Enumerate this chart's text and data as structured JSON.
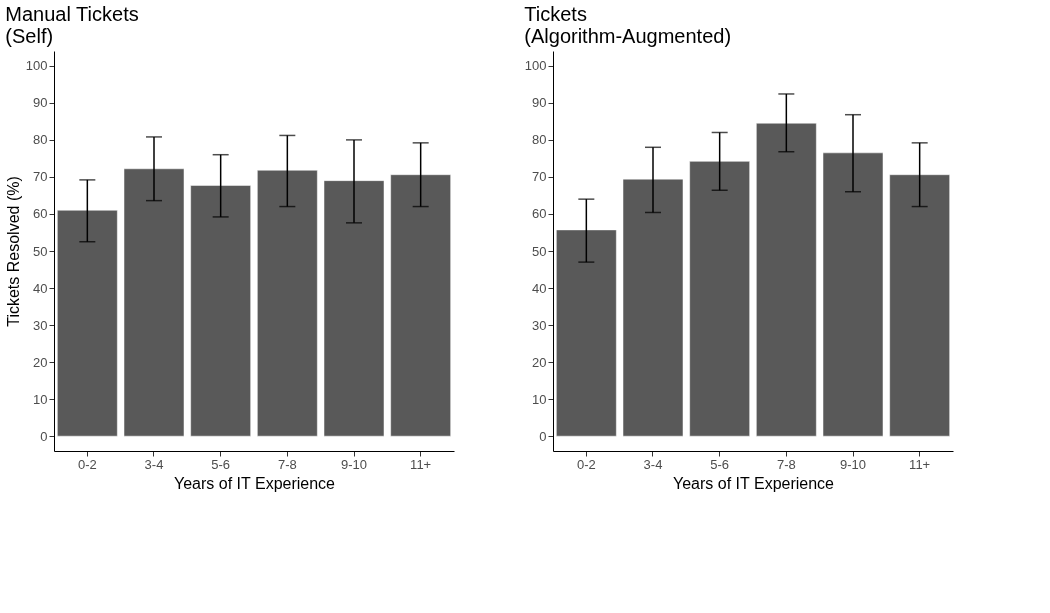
{
  "chart_data": [
    {
      "type": "bar",
      "title": "Manual Tickets\n(Self)",
      "xlabel": "Years of IT Experience",
      "ylabel": "Tickets Resolved (%)",
      "categories": [
        "0-2",
        "3-4",
        "5-6",
        "7-8",
        "9-10",
        "11+"
      ],
      "values": [
        61,
        72.2,
        67.7,
        71.8,
        69,
        70.6
      ],
      "color": "#595959",
      "errors": [
        [
          52.5,
          69.2
        ],
        [
          63.6,
          80.8
        ],
        [
          59.2,
          76
        ],
        [
          62,
          81.2
        ],
        [
          57.6,
          80
        ],
        [
          62,
          79.2
        ]
      ],
      "ylim": [
        -4,
        104
      ],
      "yticks": [
        0,
        10,
        20,
        30,
        40,
        50,
        60,
        70,
        80,
        90,
        100
      ],
      "grid": false
    },
    {
      "type": "bar",
      "title": "Tickets\n(Algorithm-Augmented)",
      "xlabel": "Years of IT Experience",
      "categories": [
        "0-2",
        "3-4",
        "5-6",
        "7-8",
        "9-10",
        "11+"
      ],
      "values": [
        55.7,
        69.4,
        74.2,
        84.5,
        76.5,
        70.6
      ],
      "color": "#595959",
      "errors": [
        [
          47,
          64
        ],
        [
          60.4,
          78
        ],
        [
          66.4,
          82
        ],
        [
          76.8,
          92.4
        ],
        [
          66,
          86.8
        ],
        [
          62,
          79.2
        ]
      ],
      "ylim": [
        -4,
        104
      ],
      "yticks": [
        0,
        10,
        20,
        30,
        40,
        50,
        60,
        70,
        80,
        90,
        100
      ],
      "grid": false
    }
  ]
}
